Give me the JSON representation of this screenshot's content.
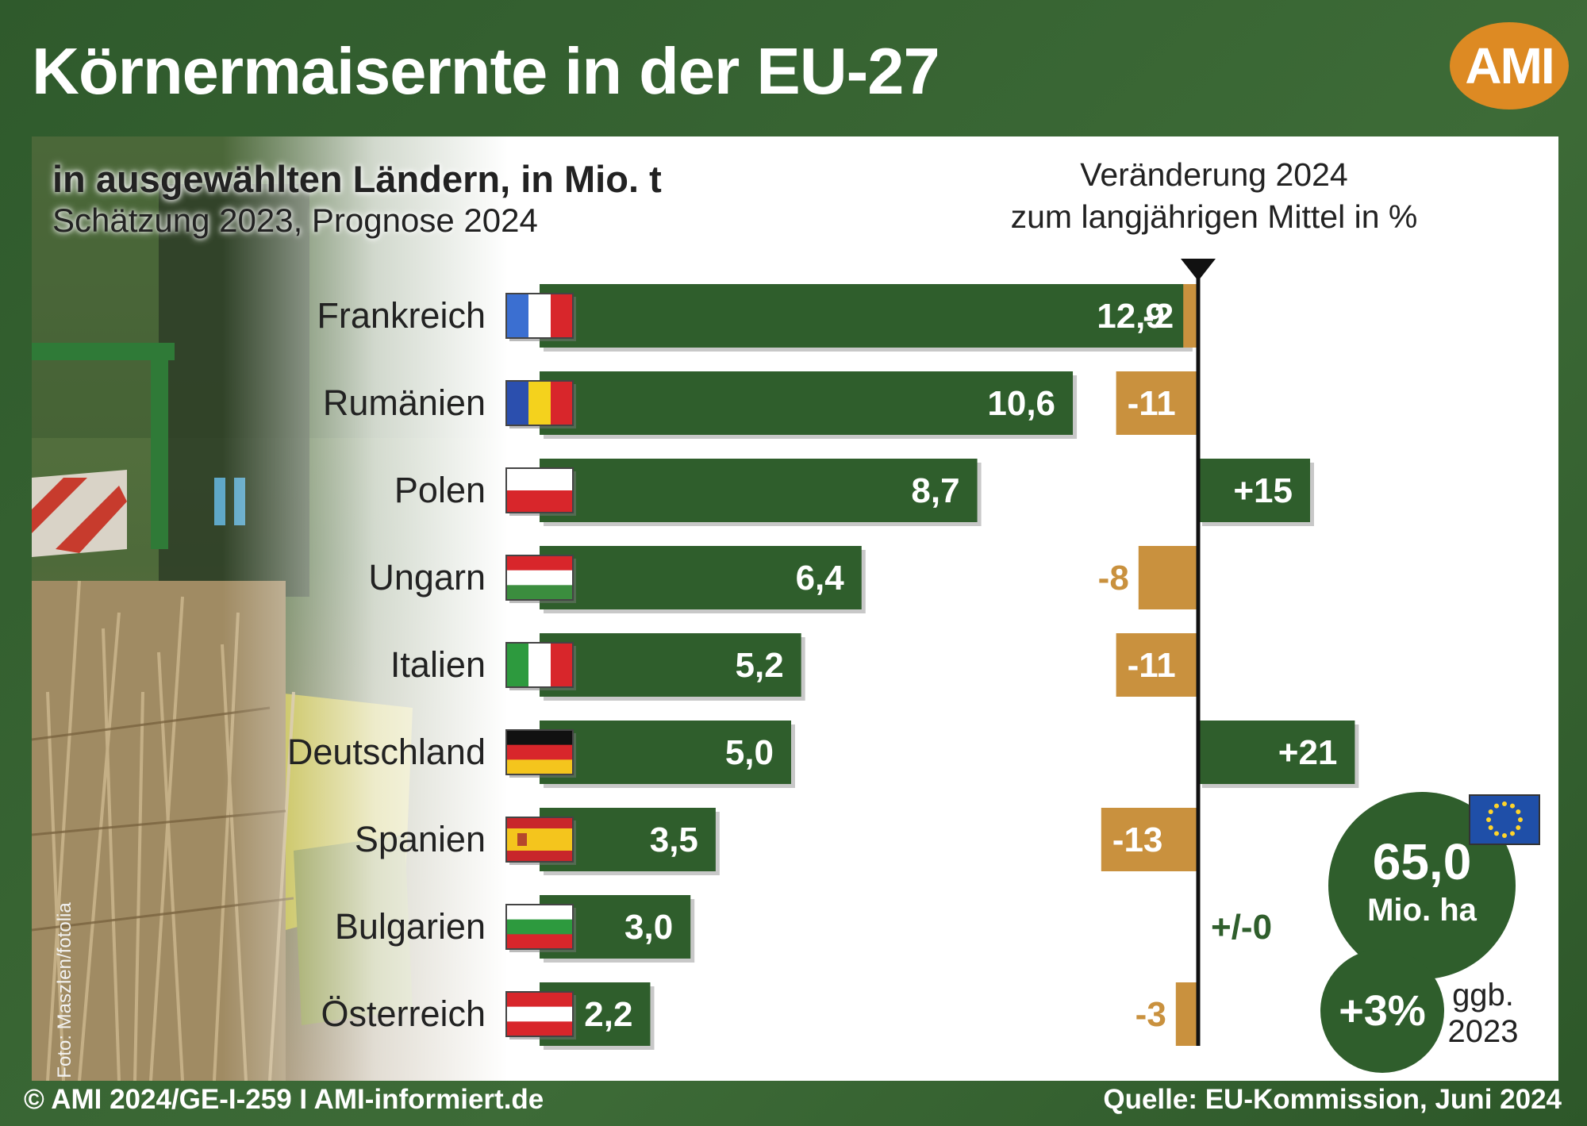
{
  "header": {
    "title": "Körnermaisernte in der EU-27",
    "logo_text": "AMI"
  },
  "subtitle": {
    "line1": "in ausgewählten Ländern, in Mio. t",
    "line2": "Schätzung 2023, Prognose 2024"
  },
  "change_header": {
    "line1": "Veränderung 2024",
    "line2": "zum langjährigen Mittel in %"
  },
  "photo_credit": "Foto: Maszlen/fotolia",
  "footer": {
    "left": "© AMI 2024/GE-I-259 I AMI-informiert.de",
    "right": "Quelle: EU-Kommission, Juni 2024"
  },
  "colors": {
    "background_green": "#3a6534",
    "bar_green": "#2f5e2c",
    "change_orange": "#c9913e",
    "logo_orange": "#dd8a23"
  },
  "chart_data": {
    "type": "bar",
    "orientation": "horizontal",
    "categories": [
      "Frankreich",
      "Rumänien",
      "Polen",
      "Ungarn",
      "Italien",
      "Deutschland",
      "Spanien",
      "Bulgarien",
      "Österreich"
    ],
    "flags": [
      "france-flag-icon",
      "romania-flag-icon",
      "poland-flag-icon",
      "hungary-flag-icon",
      "italy-flag-icon",
      "germany-flag-icon",
      "spain-flag-icon",
      "bulgaria-flag-icon",
      "austria-flag-icon"
    ],
    "series": [
      {
        "values": [
          12.9,
          10.6,
          8.7,
          6.4,
          5.2,
          5.0,
          3.5,
          3.0,
          2.2
        ],
        "labels": [
          "12,9",
          "10,6",
          "8,7",
          "6,4",
          "5,2",
          "5,0",
          "3,5",
          "3,0",
          "2,2"
        ]
      },
      {
        "values": [
          -2,
          -11,
          15,
          -8,
          -11,
          21,
          -13,
          0,
          -3
        ],
        "labels": [
          "-2",
          "-11",
          "+15",
          "-8",
          "-11",
          "+21",
          "-13",
          "+/-0",
          "-3"
        ]
      }
    ],
    "eu_total": {
      "value": "65,0",
      "unit": "Mio. ha",
      "change": "+3%",
      "change_label_line1": "ggb.",
      "change_label_line2": "2023"
    }
  }
}
